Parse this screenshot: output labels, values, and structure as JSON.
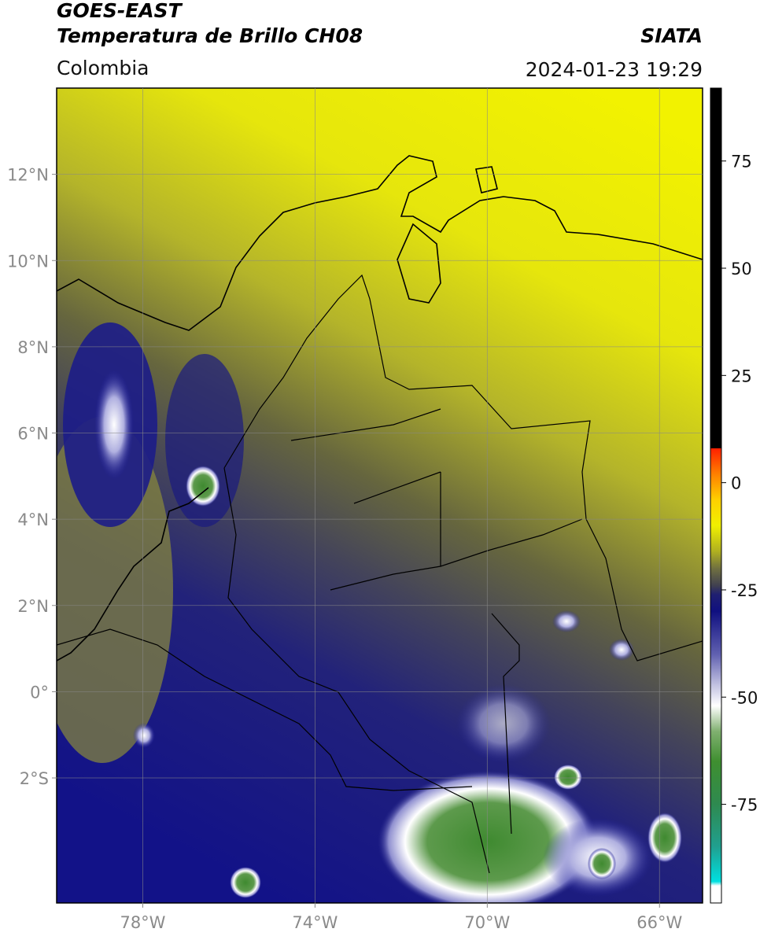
{
  "header": {
    "title_line1": "GOES-EAST",
    "title_line2": "Temperatura de Brillo CH08",
    "region": "Colombia",
    "source": "SIATA",
    "datetime": "2024-01-23 19:29"
  },
  "map": {
    "xlim": [
      -80,
      -65
    ],
    "ylim": [
      -4.9,
      14
    ],
    "xticks": [
      {
        "value": -78,
        "label": "78°W"
      },
      {
        "value": -74,
        "label": "74°W"
      },
      {
        "value": -70,
        "label": "70°W"
      },
      {
        "value": -66,
        "label": "66°W"
      }
    ],
    "yticks": [
      {
        "value": 12,
        "label": "12°N"
      },
      {
        "value": 10,
        "label": "10°N"
      },
      {
        "value": 8,
        "label": "8°N"
      },
      {
        "value": 6,
        "label": "6°N"
      },
      {
        "value": 4,
        "label": "4°N"
      },
      {
        "value": 2,
        "label": "2°N"
      },
      {
        "value": 0,
        "label": "0°"
      },
      {
        "value": -2,
        "label": "2°S"
      }
    ],
    "grid": true
  },
  "colorbar": {
    "lim": [
      -98,
      92
    ],
    "ticks": [
      75,
      50,
      25,
      0,
      -25,
      -50,
      -75
    ],
    "colormap": [
      {
        "value": -98,
        "color": "#ffffff"
      },
      {
        "value": -94,
        "color": "#ffffff"
      },
      {
        "value": -93,
        "color": "#00e0e0"
      },
      {
        "value": -85,
        "color": "#20a090"
      },
      {
        "value": -75,
        "color": "#2e8a50"
      },
      {
        "value": -65,
        "color": "#3f8f30"
      },
      {
        "value": -58,
        "color": "#80b070"
      },
      {
        "value": -52,
        "color": "#ffffff"
      },
      {
        "value": -47,
        "color": "#c0c0e0"
      },
      {
        "value": -40,
        "color": "#6060b0"
      },
      {
        "value": -30,
        "color": "#101080"
      },
      {
        "value": -26,
        "color": "#202070"
      },
      {
        "value": -24,
        "color": "#404050"
      },
      {
        "value": -20,
        "color": "#707040"
      },
      {
        "value": -16,
        "color": "#b0b020"
      },
      {
        "value": -10,
        "color": "#f0f000"
      },
      {
        "value": -4,
        "color": "#ffd000"
      },
      {
        "value": 2,
        "color": "#ff8000"
      },
      {
        "value": 8,
        "color": "#ff2000"
      },
      {
        "value": 8,
        "color": "#000000"
      },
      {
        "value": 92,
        "color": "#000000"
      }
    ]
  }
}
